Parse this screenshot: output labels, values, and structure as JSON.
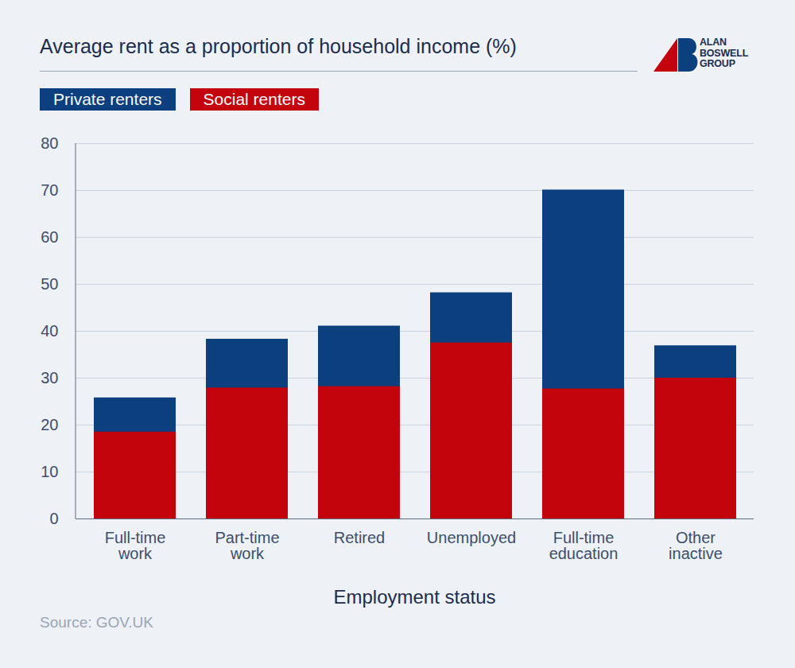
{
  "chart_data": {
    "type": "bar",
    "title": "Average rent as a proportion of household income (%)",
    "logo": "ALAN\nBOSWELL\nGROUP",
    "xlabel": "Employment status",
    "source": "Source: GOV.UK",
    "categories": [
      "Full-time\nwork",
      "Part-time\nwork",
      "Retired",
      "Unemployed",
      "Full-time\neducation",
      "Other\ninactive"
    ],
    "series": [
      {
        "name": "Private renters",
        "color": "#0b3f7e",
        "values": [
          25.8,
          38.3,
          41.1,
          48.2,
          70.1,
          36.9
        ]
      },
      {
        "name": "Social renters",
        "color": "#c4040c",
        "values": [
          18.5,
          27.9,
          28.2,
          37.5,
          27.7,
          30.0
        ]
      }
    ],
    "ylim": [
      0,
      80
    ],
    "yticks": [
      0,
      10,
      20,
      30,
      40,
      50,
      60,
      70,
      80
    ],
    "grid": true,
    "legend": "top-left"
  }
}
